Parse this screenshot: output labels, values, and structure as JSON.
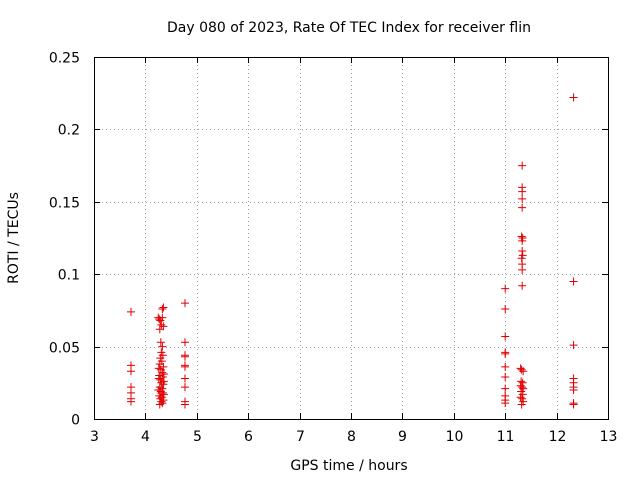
{
  "chart_data": {
    "type": "scatter",
    "title": "Day 080 of 2023, Rate Of TEC Index for receiver flin",
    "xlabel": "GPS time / hours",
    "ylabel": "ROTI / TECUs",
    "xlim": [
      3,
      13
    ],
    "ylim": [
      0,
      0.25
    ],
    "grid": true,
    "marker": "+",
    "color": "#e00000",
    "x_ticks": [
      3,
      4,
      5,
      6,
      7,
      8,
      9,
      10,
      11,
      12,
      13
    ],
    "x_tick_labels": [
      "3",
      "4",
      "5",
      "6",
      "7",
      "8",
      "9",
      "10",
      "11",
      "12",
      "13"
    ],
    "y_ticks": [
      0,
      0.05,
      0.1,
      0.15,
      0.2,
      0.25
    ],
    "y_tick_labels": [
      "0",
      "0.05",
      "0.1",
      "0.15",
      "0.2",
      "0.25"
    ],
    "series": [
      {
        "name": "ROTI",
        "points": [
          [
            3.72,
            0.074
          ],
          [
            3.72,
            0.037
          ],
          [
            3.72,
            0.033
          ],
          [
            3.72,
            0.022
          ],
          [
            3.72,
            0.018
          ],
          [
            3.72,
            0.014
          ],
          [
            3.72,
            0.012
          ],
          [
            4.25,
            0.07
          ],
          [
            4.27,
            0.069
          ],
          [
            4.29,
            0.068
          ],
          [
            4.31,
            0.065
          ],
          [
            4.33,
            0.07
          ],
          [
            4.35,
            0.064
          ],
          [
            4.28,
            0.062
          ],
          [
            4.33,
            0.076
          ],
          [
            4.35,
            0.077
          ],
          [
            4.3,
            0.053
          ],
          [
            4.33,
            0.05
          ],
          [
            4.31,
            0.046
          ],
          [
            4.34,
            0.044
          ],
          [
            4.29,
            0.042
          ],
          [
            4.32,
            0.04
          ],
          [
            4.28,
            0.038
          ],
          [
            4.35,
            0.036
          ],
          [
            4.3,
            0.034
          ],
          [
            4.33,
            0.032
          ],
          [
            4.27,
            0.03
          ],
          [
            4.34,
            0.029
          ],
          [
            4.29,
            0.027
          ],
          [
            4.31,
            0.025
          ],
          [
            4.35,
            0.024
          ],
          [
            4.28,
            0.022
          ],
          [
            4.33,
            0.021
          ],
          [
            4.3,
            0.019
          ],
          [
            4.34,
            0.018
          ],
          [
            4.27,
            0.016
          ],
          [
            4.32,
            0.015
          ],
          [
            4.29,
            0.014
          ],
          [
            4.35,
            0.013
          ],
          [
            4.31,
            0.012
          ],
          [
            4.33,
            0.011
          ],
          [
            4.28,
            0.01
          ],
          [
            4.26,
            0.028
          ],
          [
            4.36,
            0.031
          ],
          [
            4.25,
            0.02
          ],
          [
            4.36,
            0.017
          ],
          [
            4.26,
            0.035
          ],
          [
            4.36,
            0.026
          ],
          [
            4.77,
            0.08
          ],
          [
            4.77,
            0.053
          ],
          [
            4.77,
            0.044
          ],
          [
            4.77,
            0.043
          ],
          [
            4.77,
            0.037
          ],
          [
            4.77,
            0.036
          ],
          [
            4.77,
            0.028
          ],
          [
            4.77,
            0.022
          ],
          [
            4.77,
            0.012
          ],
          [
            4.77,
            0.01
          ],
          [
            11.0,
            0.09
          ],
          [
            11.0,
            0.076
          ],
          [
            11.0,
            0.057
          ],
          [
            11.0,
            0.046
          ],
          [
            11.0,
            0.045
          ],
          [
            11.0,
            0.036
          ],
          [
            11.0,
            0.029
          ],
          [
            11.0,
            0.021
          ],
          [
            11.0,
            0.016
          ],
          [
            11.0,
            0.013
          ],
          [
            11.0,
            0.011
          ],
          [
            11.33,
            0.175
          ],
          [
            11.33,
            0.16
          ],
          [
            11.33,
            0.157
          ],
          [
            11.33,
            0.152
          ],
          [
            11.33,
            0.146
          ],
          [
            11.32,
            0.126
          ],
          [
            11.34,
            0.125
          ],
          [
            11.33,
            0.123
          ],
          [
            11.33,
            0.116
          ],
          [
            11.34,
            0.113
          ],
          [
            11.32,
            0.111
          ],
          [
            11.33,
            0.107
          ],
          [
            11.33,
            0.103
          ],
          [
            11.33,
            0.092
          ],
          [
            11.3,
            0.035
          ],
          [
            11.32,
            0.034
          ],
          [
            11.35,
            0.033
          ],
          [
            11.31,
            0.026
          ],
          [
            11.34,
            0.025
          ],
          [
            11.3,
            0.023
          ],
          [
            11.33,
            0.022
          ],
          [
            11.35,
            0.021
          ],
          [
            11.31,
            0.019
          ],
          [
            11.34,
            0.017
          ],
          [
            11.3,
            0.015
          ],
          [
            11.33,
            0.014
          ],
          [
            11.35,
            0.012
          ],
          [
            11.32,
            0.01
          ],
          [
            12.33,
            0.222
          ],
          [
            12.33,
            0.095
          ],
          [
            12.33,
            0.051
          ],
          [
            12.33,
            0.028
          ],
          [
            12.33,
            0.025
          ],
          [
            12.33,
            0.022
          ],
          [
            12.33,
            0.02
          ],
          [
            12.33,
            0.011
          ],
          [
            12.33,
            0.01
          ]
        ]
      }
    ]
  }
}
